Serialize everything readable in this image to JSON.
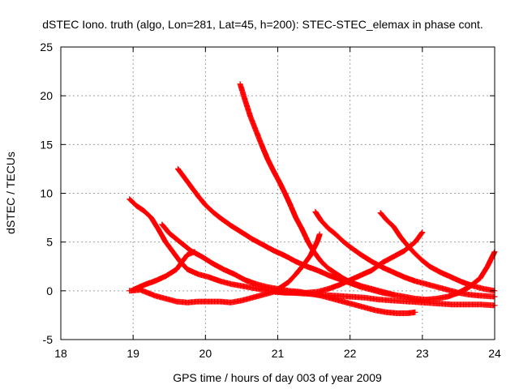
{
  "chart_data": {
    "type": "scatter",
    "title": "dSTEC Iono. truth (algo, Lon=281, Lat=45, h=200): STEC-STEC_elemax in phase cont.",
    "xlabel": "GPS time / hours of day 003 of year 2009",
    "ylabel": "dSTEC  / TECUs",
    "xlim": [
      18,
      24
    ],
    "ylim": [
      -5,
      25
    ],
    "x_ticks": [
      18,
      19,
      20,
      21,
      22,
      23,
      24
    ],
    "y_ticks": [
      -5,
      0,
      5,
      10,
      15,
      20,
      25
    ],
    "grid": true,
    "legend": "none",
    "marker": "plus",
    "color": "#ff0000",
    "series": [
      {
        "points": [
          [
            18.95,
            9.4
          ],
          [
            19.05,
            8.7
          ],
          [
            19.15,
            8.2
          ],
          [
            19.25,
            7.5
          ],
          [
            19.35,
            6.3
          ],
          [
            19.45,
            5.0
          ],
          [
            19.55,
            4.0
          ],
          [
            19.65,
            3.0
          ],
          [
            19.75,
            2.2
          ],
          [
            19.9,
            1.7
          ],
          [
            20.05,
            1.4
          ],
          [
            20.2,
            1.0
          ],
          [
            20.35,
            0.7
          ],
          [
            20.5,
            0.5
          ],
          [
            20.65,
            0.3
          ],
          [
            20.8,
            0.1
          ],
          [
            21.0,
            -0.1
          ],
          [
            21.2,
            -0.2
          ],
          [
            21.4,
            -0.3
          ],
          [
            21.6,
            -0.4
          ],
          [
            21.8,
            -0.5
          ],
          [
            22.0,
            -0.6
          ],
          [
            22.2,
            -0.7
          ],
          [
            22.4,
            -0.9
          ],
          [
            22.6,
            -1.0
          ],
          [
            22.8,
            -1.1
          ],
          [
            23.0,
            -1.2
          ],
          [
            23.2,
            -1.3
          ],
          [
            23.4,
            -1.4
          ],
          [
            23.6,
            -1.4
          ],
          [
            23.8,
            -1.4
          ],
          [
            24.0,
            -1.5
          ]
        ]
      },
      {
        "points": [
          [
            18.95,
            0.0
          ],
          [
            19.1,
            0.1
          ],
          [
            19.2,
            -0.2
          ],
          [
            19.3,
            -0.5
          ],
          [
            19.45,
            -0.8
          ],
          [
            19.6,
            -1.1
          ],
          [
            19.75,
            -1.2
          ],
          [
            19.9,
            -1.1
          ],
          [
            20.05,
            -1.1
          ],
          [
            20.2,
            -1.1
          ],
          [
            20.35,
            -1.2
          ],
          [
            20.5,
            -1.0
          ],
          [
            20.65,
            -0.7
          ],
          [
            20.8,
            -0.4
          ],
          [
            20.95,
            -0.1
          ],
          [
            21.05,
            0.4
          ],
          [
            21.15,
            0.9
          ],
          [
            21.25,
            1.7
          ],
          [
            21.35,
            2.6
          ],
          [
            21.45,
            3.6
          ],
          [
            21.55,
            5.1
          ],
          [
            21.58,
            5.8
          ]
        ]
      },
      {
        "points": [
          [
            19.0,
            0.1
          ],
          [
            19.15,
            0.6
          ],
          [
            19.3,
            1.0
          ],
          [
            19.45,
            1.5
          ],
          [
            19.6,
            2.2
          ],
          [
            19.75,
            3.7
          ],
          [
            19.85,
            4.0
          ]
        ]
      },
      {
        "points": [
          [
            19.4,
            6.8
          ],
          [
            19.5,
            5.9
          ],
          [
            19.6,
            5.3
          ],
          [
            19.7,
            4.7
          ],
          [
            19.8,
            4.1
          ],
          [
            19.95,
            3.5
          ],
          [
            20.1,
            2.8
          ],
          [
            20.25,
            2.2
          ],
          [
            20.4,
            1.7
          ],
          [
            20.55,
            1.1
          ],
          [
            20.7,
            0.7
          ],
          [
            20.85,
            0.4
          ],
          [
            21.0,
            0.2
          ],
          [
            21.15,
            0.0
          ],
          [
            21.3,
            -0.1
          ],
          [
            21.45,
            -0.3
          ],
          [
            21.6,
            -0.5
          ],
          [
            21.75,
            -0.8
          ],
          [
            21.9,
            -1.1
          ],
          [
            22.05,
            -1.4
          ],
          [
            22.2,
            -1.7
          ],
          [
            22.35,
            -2.0
          ],
          [
            22.5,
            -2.2
          ],
          [
            22.65,
            -2.3
          ],
          [
            22.8,
            -2.3
          ],
          [
            22.9,
            -2.2
          ]
        ]
      },
      {
        "points": [
          [
            19.62,
            12.5
          ],
          [
            19.7,
            11.7
          ],
          [
            19.8,
            10.7
          ],
          [
            19.9,
            9.7
          ],
          [
            20.0,
            8.8
          ],
          [
            20.1,
            8.1
          ],
          [
            20.2,
            7.5
          ],
          [
            20.35,
            6.7
          ],
          [
            20.5,
            6.0
          ],
          [
            20.65,
            5.3
          ],
          [
            20.8,
            4.7
          ],
          [
            20.95,
            4.1
          ],
          [
            21.1,
            3.6
          ],
          [
            21.25,
            3.0
          ],
          [
            21.4,
            2.5
          ],
          [
            21.55,
            2.1
          ],
          [
            21.7,
            1.6
          ],
          [
            21.85,
            1.2
          ],
          [
            22.0,
            0.8
          ],
          [
            22.15,
            0.4
          ],
          [
            22.3,
            0.1
          ],
          [
            22.45,
            -0.2
          ],
          [
            22.6,
            -0.4
          ],
          [
            22.75,
            -0.6
          ],
          [
            22.9,
            -0.8
          ],
          [
            23.05,
            -0.9
          ],
          [
            23.2,
            -0.8
          ],
          [
            23.35,
            -0.6
          ],
          [
            23.5,
            -0.2
          ],
          [
            23.65,
            0.4
          ],
          [
            23.8,
            1.3
          ],
          [
            23.9,
            2.5
          ],
          [
            24.0,
            4.0
          ]
        ]
      },
      {
        "points": [
          [
            20.48,
            21.2
          ],
          [
            20.55,
            19.5
          ],
          [
            20.62,
            17.9
          ],
          [
            20.7,
            16.4
          ],
          [
            20.78,
            14.9
          ],
          [
            20.86,
            13.5
          ],
          [
            20.94,
            12.3
          ],
          [
            21.02,
            11.2
          ],
          [
            21.1,
            10.0
          ],
          [
            21.18,
            8.7
          ],
          [
            21.25,
            7.5
          ],
          [
            21.33,
            6.4
          ],
          [
            21.42,
            5.0
          ],
          [
            21.5,
            4.0
          ],
          [
            21.6,
            3.0
          ],
          [
            21.7,
            2.3
          ],
          [
            21.8,
            1.8
          ],
          [
            21.9,
            1.3
          ],
          [
            22.0,
            0.9
          ],
          [
            22.15,
            0.5
          ],
          [
            22.3,
            0.2
          ],
          [
            22.45,
            -0.1
          ],
          [
            22.6,
            -0.4
          ]
        ]
      },
      {
        "points": [
          [
            20.95,
            -0.1
          ],
          [
            21.1,
            -0.2
          ],
          [
            21.25,
            -0.2
          ],
          [
            21.4,
            -0.2
          ],
          [
            21.55,
            -0.1
          ],
          [
            21.7,
            0.2
          ],
          [
            21.85,
            0.6
          ],
          [
            22.0,
            1.1
          ],
          [
            22.15,
            1.6
          ],
          [
            22.3,
            2.1
          ],
          [
            22.45,
            2.9
          ],
          [
            22.6,
            3.5
          ],
          [
            22.75,
            4.1
          ],
          [
            22.9,
            5.0
          ],
          [
            23.0,
            6.0
          ]
        ]
      },
      {
        "points": [
          [
            21.52,
            8.1
          ],
          [
            21.6,
            7.2
          ],
          [
            21.7,
            6.4
          ],
          [
            21.8,
            5.8
          ],
          [
            21.9,
            5.1
          ],
          [
            22.0,
            4.5
          ],
          [
            22.15,
            3.7
          ],
          [
            22.3,
            3.0
          ],
          [
            22.45,
            2.4
          ],
          [
            22.6,
            1.9
          ],
          [
            22.75,
            1.4
          ],
          [
            22.9,
            1.0
          ],
          [
            23.05,
            0.7
          ],
          [
            23.2,
            0.4
          ],
          [
            23.35,
            0.1
          ],
          [
            23.5,
            -0.2
          ],
          [
            23.65,
            -0.4
          ],
          [
            23.8,
            -0.5
          ],
          [
            24.0,
            -0.6
          ]
        ]
      },
      {
        "points": [
          [
            22.42,
            8.0
          ],
          [
            22.5,
            7.3
          ],
          [
            22.6,
            6.6
          ],
          [
            22.7,
            5.5
          ],
          [
            22.8,
            4.6
          ],
          [
            22.9,
            3.8
          ],
          [
            23.0,
            3.1
          ],
          [
            23.1,
            2.5
          ],
          [
            23.25,
            1.9
          ],
          [
            23.4,
            1.4
          ],
          [
            23.55,
            0.9
          ],
          [
            23.7,
            0.5
          ],
          [
            23.85,
            0.2
          ],
          [
            24.0,
            0.0
          ]
        ]
      }
    ]
  }
}
